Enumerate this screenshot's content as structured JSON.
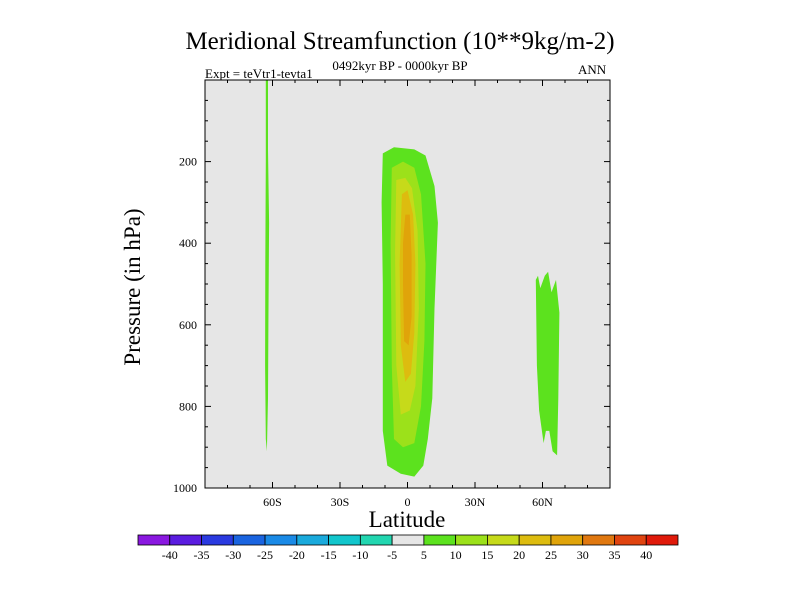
{
  "chart_data": {
    "type": "contour",
    "title": "Meridional Streamfunction (10**9kg/m-2)",
    "subtitle_left": "Expt = teVtr1-tevta1",
    "subtitle_center": "0492kyr BP - 0000kyr BP",
    "subtitle_right": "ANN",
    "xlabel": "Latitude",
    "ylabel": "Pressure (in hPa)",
    "xlim": [
      -90,
      90
    ],
    "ylim": [
      1000,
      0
    ],
    "x_ticks": [
      {
        "value": -60,
        "label": "60S"
      },
      {
        "value": -30,
        "label": "30S"
      },
      {
        "value": 0,
        "label": "0"
      },
      {
        "value": 30,
        "label": "30N"
      },
      {
        "value": 60,
        "label": "60N"
      }
    ],
    "y_ticks": [
      {
        "value": 200,
        "label": "200"
      },
      {
        "value": 400,
        "label": "400"
      },
      {
        "value": 600,
        "label": "600"
      },
      {
        "value": 800,
        "label": "800"
      },
      {
        "value": 1000,
        "label": "1000"
      }
    ],
    "background_color": "#e6e6e6",
    "levels": [
      -40,
      -35,
      -30,
      -25,
      -20,
      -15,
      -10,
      -5,
      5,
      10,
      15,
      20,
      25,
      30,
      35,
      40
    ],
    "colorbar_colors": [
      "#8a18e0",
      "#5a1ce0",
      "#2a3ae0",
      "#1a64e0",
      "#1a8ae6",
      "#1aaadc",
      "#12c6cc",
      "#22d6b0",
      "#e6e6e6",
      "#5ce21e",
      "#9ce11a",
      "#c6da1a",
      "#ddbc0f",
      "#e0a40a",
      "#e07810",
      "#e04410",
      "#e01a0a"
    ],
    "features": [
      {
        "name": "thin band 63S",
        "rings": [
          {
            "level": 5,
            "polygon": [
              [
                -63,
                0
              ],
              [
                -62,
                0
              ],
              [
                -62,
                170
              ],
              [
                -61.5,
                350
              ],
              [
                -61.8,
                600
              ],
              [
                -62,
                780
              ],
              [
                -62.5,
                910
              ],
              [
                -63,
                880
              ],
              [
                -63.3,
                700
              ],
              [
                -63.2,
                450
              ],
              [
                -63,
                200
              ]
            ]
          }
        ]
      },
      {
        "name": "equatorial cell",
        "rings": [
          {
            "level": 5,
            "polygon": [
              [
                -11,
                180
              ],
              [
                -6,
                165
              ],
              [
                3,
                170
              ],
              [
                8,
                185
              ],
              [
                12,
                260
              ],
              [
                13.5,
                350
              ],
              [
                12,
                560
              ],
              [
                11,
                780
              ],
              [
                9,
                880
              ],
              [
                7,
                945
              ],
              [
                3,
                972
              ],
              [
                -3,
                965
              ],
              [
                -9,
                945
              ],
              [
                -11,
                860
              ],
              [
                -11,
                500
              ],
              [
                -11.5,
                300
              ]
            ]
          },
          {
            "level": 10,
            "polygon": [
              [
                -7,
                215
              ],
              [
                -2,
                200
              ],
              [
                3,
                215
              ],
              [
                6,
                280
              ],
              [
                8,
                450
              ],
              [
                7.5,
                640
              ],
              [
                6,
                800
              ],
              [
                3,
                890
              ],
              [
                -2,
                900
              ],
              [
                -6,
                880
              ],
              [
                -7,
                700
              ],
              [
                -7.5,
                400
              ]
            ]
          },
          {
            "level": 15,
            "polygon": [
              [
                -5,
                245
              ],
              [
                -1,
                240
              ],
              [
                2,
                265
              ],
              [
                4.5,
                370
              ],
              [
                5,
                560
              ],
              [
                3.5,
                750
              ],
              [
                1,
                810
              ],
              [
                -3,
                820
              ],
              [
                -5,
                700
              ],
              [
                -5.5,
                420
              ]
            ]
          },
          {
            "level": 20,
            "polygon": [
              [
                -2.5,
                280
              ],
              [
                0,
                270
              ],
              [
                2.5,
                330
              ],
              [
                3.5,
                450
              ],
              [
                3,
                620
              ],
              [
                1.5,
                720
              ],
              [
                -1,
                740
              ],
              [
                -3,
                650
              ],
              [
                -3.5,
                450
              ]
            ]
          },
          {
            "level": 25,
            "polygon": [
              [
                -1,
                330
              ],
              [
                1,
                330
              ],
              [
                1.8,
                430
              ],
              [
                1.8,
                580
              ],
              [
                0.5,
                650
              ],
              [
                -1.5,
                640
              ],
              [
                -2,
                500
              ],
              [
                -2,
                400
              ]
            ]
          }
        ]
      },
      {
        "name": "north cell 63N",
        "rings": [
          {
            "level": 5,
            "polygon": [
              [
                57,
                490
              ],
              [
                58,
                480
              ],
              [
                59,
                510
              ],
              [
                61,
                480
              ],
              [
                62.5,
                470
              ],
              [
                64,
                520
              ],
              [
                66,
                490
              ],
              [
                67.5,
                570
              ],
              [
                67,
                780
              ],
              [
                66.5,
                920
              ],
              [
                64.5,
                910
              ],
              [
                63,
                860
              ],
              [
                61.5,
                860
              ],
              [
                60.5,
                890
              ],
              [
                58.5,
                810
              ],
              [
                57.5,
                700
              ]
            ]
          }
        ]
      }
    ]
  }
}
